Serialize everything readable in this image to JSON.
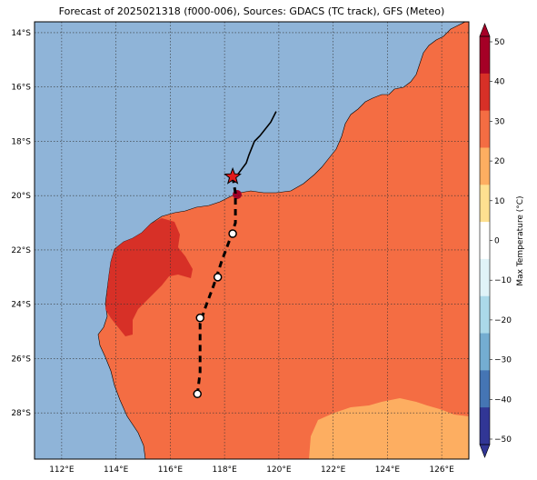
{
  "title": "Forecast of 2025021318 (f000-006), Sources: GDACS (TC track), GFS (Meteo)",
  "map": {
    "lon_range": [
      111.0,
      127.0
    ],
    "lat_range": [
      -29.7,
      -13.6
    ],
    "lon_ticks": [
      "112°E",
      "114°E",
      "116°E",
      "118°E",
      "120°E",
      "122°E",
      "124°E",
      "126°E"
    ],
    "lat_ticks": [
      "14°S",
      "16°S",
      "18°S",
      "20°S",
      "22°S",
      "24°S",
      "26°S",
      "28°S"
    ],
    "grid": true,
    "colors": {
      "ocean": "#8fb4d8",
      "land_warm": "#f46d43",
      "land_hot": "#d73027",
      "land_mild": "#fdae61",
      "land_peak": "#a50026",
      "coast": "#000000",
      "grid": "#333333"
    }
  },
  "track": {
    "observed": [
      [
        119.9,
        -16.9
      ],
      [
        119.7,
        -17.3
      ],
      [
        119.3,
        -17.8
      ],
      [
        119.1,
        -18.0
      ],
      [
        118.9,
        -18.5
      ],
      [
        118.8,
        -18.8
      ],
      [
        118.5,
        -19.2
      ],
      [
        118.3,
        -19.3
      ]
    ],
    "forecast": [
      [
        118.3,
        -19.3
      ],
      [
        118.4,
        -19.9
      ],
      [
        118.4,
        -20.5
      ],
      [
        118.4,
        -21.0
      ],
      [
        118.2,
        -21.6
      ],
      [
        117.9,
        -22.4
      ],
      [
        117.6,
        -23.3
      ],
      [
        117.3,
        -24.1
      ],
      [
        117.1,
        -24.7
      ],
      [
        117.1,
        -25.5
      ],
      [
        117.1,
        -26.5
      ],
      [
        117.0,
        -27.3
      ]
    ],
    "current_position": [
      118.3,
      -19.3
    ],
    "forecast_points": [
      [
        118.3,
        -21.4
      ],
      [
        117.75,
        -23.0
      ],
      [
        117.1,
        -24.5
      ],
      [
        117.0,
        -27.3
      ]
    ],
    "current_marker_icon": "star-icon",
    "current_marker_color": "#e31a1c"
  },
  "colorbar": {
    "label": "Max Temperature (°C)",
    "ticks": [
      "50",
      "40",
      "30",
      "20",
      "10",
      "0",
      "−10",
      "−20",
      "−30",
      "−40",
      "−50"
    ],
    "bins": [
      "#a50026",
      "#d73027",
      "#f46d43",
      "#fdae61",
      "#fee090",
      "#ffffff",
      "#e0f3f8",
      "#abd9e9",
      "#74add1",
      "#4575b4",
      "#313695"
    ]
  }
}
